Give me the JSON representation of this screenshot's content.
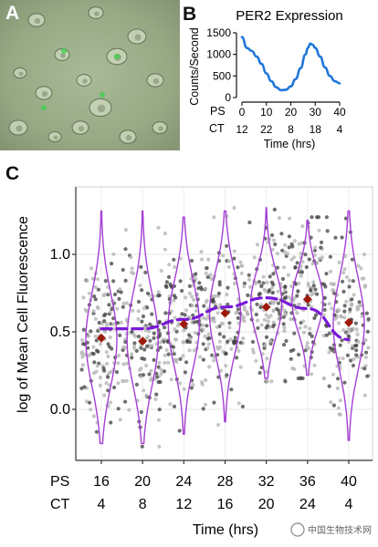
{
  "panels": {
    "a": {
      "letter": "A"
    },
    "b": {
      "letter": "B"
    },
    "c": {
      "letter": "C"
    }
  },
  "watermark": "中国生物技术网",
  "chart_data": [
    {
      "panel": "B",
      "type": "line",
      "title": "PER2 Expression",
      "ylabel": "Counts/Second",
      "xlabel": "Time (hrs)",
      "row_labels": [
        "PS",
        "CT"
      ],
      "x_ticks_ps": [
        "0",
        "10",
        "20",
        "30",
        "40"
      ],
      "x_ticks_ct": [
        "12",
        "22",
        "8",
        "18",
        "4"
      ],
      "y_ticks": [
        "0",
        "500",
        "1000",
        "1500"
      ],
      "xlim": [
        0,
        40
      ],
      "ylim": [
        0,
        1500
      ],
      "color": "#1f77d9",
      "series": [
        {
          "x": [
            0,
            2,
            4,
            6,
            8,
            10,
            12,
            14,
            16,
            18,
            20,
            22,
            24,
            26,
            27,
            28,
            29,
            30,
            32,
            34,
            36,
            38,
            40
          ],
          "values": [
            1400,
            1150,
            1080,
            950,
            780,
            560,
            380,
            240,
            170,
            180,
            260,
            430,
            680,
            1000,
            1150,
            1250,
            1220,
            1150,
            950,
            700,
            500,
            380,
            330
          ]
        }
      ]
    },
    {
      "panel": "C",
      "type": "violin",
      "ylabel": "log of Mean Cell Fluorescence",
      "xlabel": "Time (hrs)",
      "row_labels": [
        "PS",
        "CT"
      ],
      "categories_ps": [
        "16",
        "20",
        "24",
        "28",
        "32",
        "36",
        "40"
      ],
      "categories_ct": [
        "4",
        "8",
        "12",
        "16",
        "20",
        "24",
        "4"
      ],
      "y_ticks": [
        "0.0",
        "0.5",
        "1.0"
      ],
      "ylim": [
        -0.2,
        1.3
      ],
      "violin_color": "#a63fd6",
      "trend_color": "#7a18d8",
      "mean_color": "#9e1b0b",
      "groups": [
        {
          "ps": 16,
          "min": -0.22,
          "max": 1.28,
          "median": 0.45,
          "mean": 0.46
        },
        {
          "ps": 20,
          "min": -0.22,
          "max": 1.28,
          "median": 0.45,
          "mean": 0.44
        },
        {
          "ps": 24,
          "min": -0.16,
          "max": 1.24,
          "median": 0.55,
          "mean": 0.55
        },
        {
          "ps": 28,
          "min": -0.08,
          "max": 1.28,
          "median": 0.62,
          "mean": 0.62
        },
        {
          "ps": 32,
          "min": 0.2,
          "max": 1.3,
          "median": 0.68,
          "mean": 0.66
        },
        {
          "ps": 36,
          "min": 0.22,
          "max": 1.22,
          "median": 0.7,
          "mean": 0.71
        },
        {
          "ps": 40,
          "min": -0.2,
          "max": 1.28,
          "median": 0.55,
          "mean": 0.56
        }
      ],
      "trend": {
        "x": [
          16,
          20,
          24,
          28,
          32,
          36,
          40
        ],
        "values": [
          0.52,
          0.52,
          0.58,
          0.66,
          0.72,
          0.65,
          0.45
        ]
      }
    }
  ]
}
